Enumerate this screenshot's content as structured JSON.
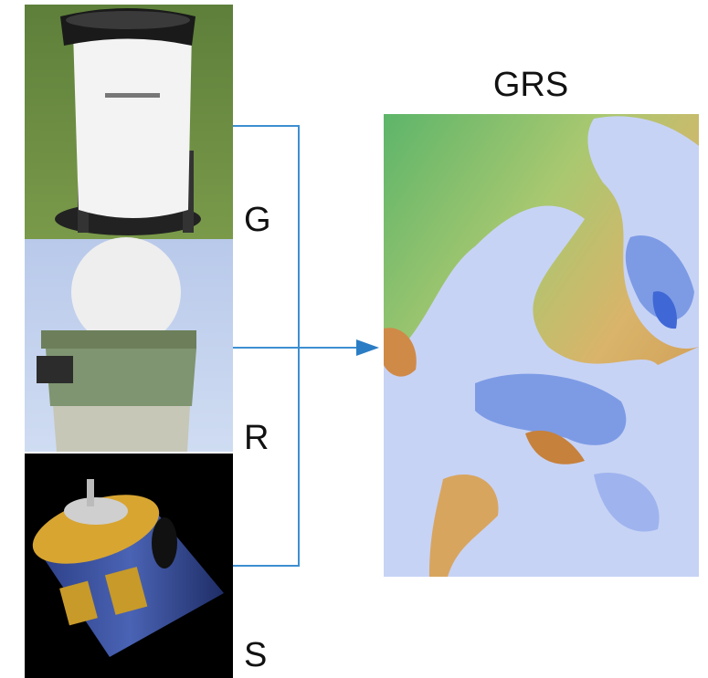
{
  "nodes": [
    {
      "label": "G"
    },
    {
      "label": "R"
    },
    {
      "label": "S"
    }
  ],
  "output": {
    "label": "GRS"
  }
}
